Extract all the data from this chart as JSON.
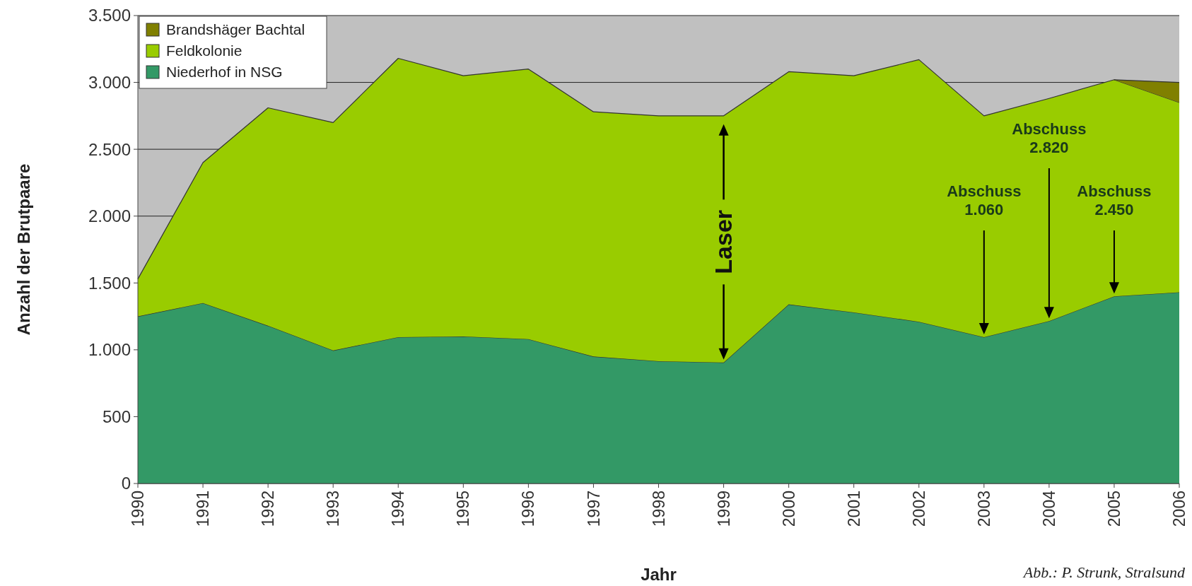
{
  "chart_data": {
    "type": "area",
    "stacked": true,
    "xlabel": "Jahr",
    "ylabel": "Anzahl der Brutpaare",
    "x": [
      1990,
      1991,
      1992,
      1993,
      1994,
      1995,
      1996,
      1997,
      1998,
      1999,
      2000,
      2001,
      2002,
      2003,
      2004,
      2005,
      2006
    ],
    "xlim": [
      1990,
      2006
    ],
    "xticks": [
      1990,
      1991,
      1992,
      1993,
      1994,
      1995,
      1996,
      1997,
      1998,
      1999,
      2000,
      2001,
      2002,
      2003,
      2004,
      2005,
      2006
    ],
    "ylim": [
      0,
      3500
    ],
    "yticks": [
      {
        "value": 0,
        "label": "0"
      },
      {
        "value": 500,
        "label": "500"
      },
      {
        "value": 1000,
        "label": "1.000"
      },
      {
        "value": 1500,
        "label": "1.500"
      },
      {
        "value": 2000,
        "label": "2.000"
      },
      {
        "value": 2500,
        "label": "2.500"
      },
      {
        "value": 3000,
        "label": "3.000"
      },
      {
        "value": 3500,
        "label": "3.500"
      }
    ],
    "grid": "y",
    "legend": "top left",
    "series": [
      {
        "name": "Niederhof in NSG",
        "color": "#339966",
        "values": [
          1250,
          1350,
          1180,
          995,
          1095,
          1100,
          1080,
          950,
          915,
          905,
          1340,
          1280,
          1210,
          1095,
          1215,
          1400,
          1430
        ]
      },
      {
        "name": "Feldkolonie",
        "color": "#99cc00",
        "values": [
          280,
          1050,
          1630,
          1705,
          2085,
          1950,
          2020,
          1830,
          1835,
          1845,
          1740,
          1770,
          1960,
          1655,
          1665,
          1620,
          1420
        ]
      },
      {
        "name": "Brandshäger Bachtal",
        "color": "#808000",
        "values": [
          null,
          null,
          null,
          null,
          null,
          null,
          null,
          null,
          null,
          null,
          null,
          null,
          null,
          null,
          null,
          0,
          150
        ]
      }
    ],
    "annotations": [
      "Laser",
      "Abschuss\n1.060",
      "Abschuss\n2.820",
      "Abschuss\n2.450",
      "Abb.: P. Strunk, Stralsund"
    ]
  }
}
